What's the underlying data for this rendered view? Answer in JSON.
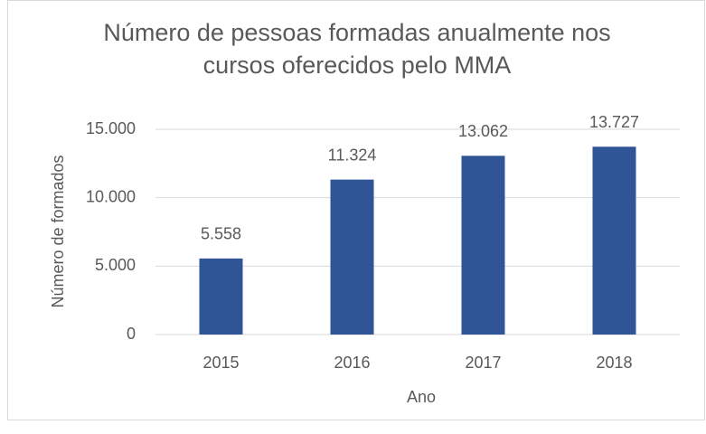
{
  "chart_data": {
    "type": "bar",
    "title": "Número de pessoas formadas anualmente nos cursos oferecidos pelo MMA",
    "x_label": "Ano",
    "y_label": "Número de formados",
    "categories": [
      "2015",
      "2016",
      "2017",
      "2018"
    ],
    "values": [
      5558,
      11324,
      13062,
      13727
    ],
    "value_labels": [
      "5.558",
      "11.324",
      "13.062",
      "13.727"
    ],
    "color": "#2f5597",
    "ylim": [
      0,
      15000
    ],
    "yticks": [
      0,
      {
        "value": 5000,
        "label": "5.000"
      },
      {
        "value": 10000,
        "label": "10.000"
      },
      {
        "value": 15000,
        "label": "15.000"
      }
    ],
    "grid": true
  }
}
